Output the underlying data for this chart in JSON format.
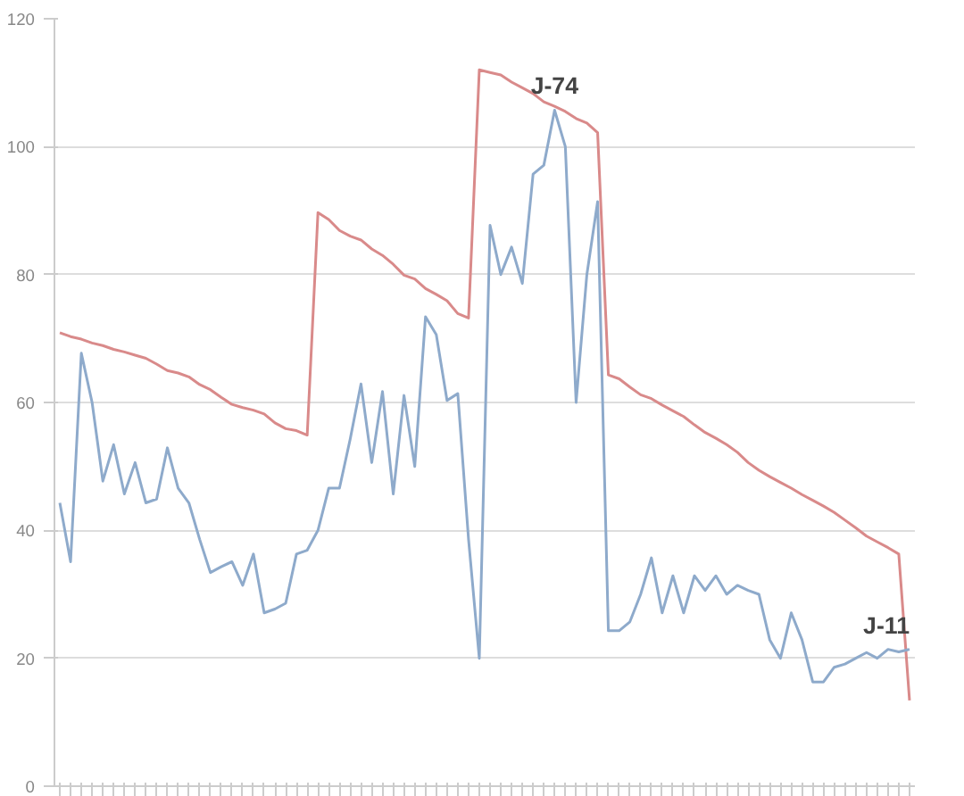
{
  "chart_data": {
    "type": "line",
    "ylim": [
      0,
      120
    ],
    "yticks": [
      0,
      20,
      40,
      60,
      80,
      100,
      120
    ],
    "tick_labels": "y",
    "grid": "y",
    "categories": [
      null,
      null,
      null,
      null,
      null,
      null,
      null,
      null,
      null,
      null,
      null,
      null,
      null,
      null,
      null,
      null,
      null,
      null,
      null,
      null,
      null,
      null,
      null,
      null,
      null,
      null,
      null,
      null,
      null,
      null,
      null,
      null,
      null,
      null,
      null,
      null,
      null,
      null,
      null,
      null,
      null,
      null,
      null,
      null,
      null,
      null,
      null,
      null,
      null,
      null,
      null,
      null,
      null,
      null,
      null,
      null,
      null,
      null,
      null,
      null,
      null,
      null,
      null,
      null,
      null,
      null,
      null,
      null,
      null,
      null,
      null,
      null,
      null,
      null,
      null,
      null,
      null,
      null,
      null,
      null
    ],
    "series": [
      {
        "color": "#d98a8a",
        "values": [
          70.9,
          70.3,
          69.9,
          69.3,
          68.9,
          68.3,
          67.9,
          67.4,
          66.9,
          66.0,
          65.0,
          64.6,
          64.0,
          62.8,
          62.0,
          60.8,
          59.7,
          59.2,
          58.8,
          58.2,
          56.8,
          55.9,
          55.6,
          54.9,
          89.7,
          88.6,
          86.9,
          86.0,
          85.4,
          84.0,
          83.0,
          81.6,
          79.9,
          79.3,
          77.8,
          76.9,
          75.9,
          73.9,
          73.2,
          112.0,
          111.6,
          111.2,
          110.1,
          109.2,
          108.3,
          107.0,
          106.3,
          105.5,
          104.4,
          103.7,
          102.2,
          64.3,
          63.7,
          62.4,
          61.2,
          60.6,
          59.6,
          58.7,
          57.8,
          56.5,
          55.3,
          54.4,
          53.4,
          52.2,
          50.6,
          49.4,
          48.4,
          47.5,
          46.6,
          45.6,
          44.7,
          43.8,
          42.8,
          41.6,
          40.4,
          39.1,
          38.2,
          37.3,
          36.3,
          13.4
        ]
      },
      {
        "color": "#8eaacb",
        "values": [
          44.3,
          35.1,
          67.7,
          60,
          47.7,
          53.4,
          45.7,
          50.6,
          44.3,
          44.9,
          52.9,
          46.6,
          44.3,
          38.6,
          33.4,
          34.3,
          35.1,
          31.4,
          36.3,
          27.1,
          27.7,
          28.6,
          36.3,
          36.9,
          40,
          46.6,
          46.6,
          54.3,
          62.9,
          50.6,
          61.7,
          45.7,
          61.1,
          50,
          73.4,
          70.6,
          60.3,
          61.4,
          38.6,
          20,
          87.7,
          80,
          84.3,
          78.6,
          95.7,
          97.1,
          105.7,
          100,
          60,
          80,
          91.4,
          24.3,
          24.3,
          25.7,
          30,
          35.7,
          27.1,
          32.9,
          27.1,
          32.9,
          30.6,
          32.9,
          30,
          31.4,
          30.6,
          30,
          22.9,
          20,
          27.1,
          22.9,
          16.3,
          16.3,
          18.6,
          19.1,
          20,
          20.9,
          20,
          21.4,
          21,
          21.4
        ]
      }
    ],
    "annotations": [
      {
        "text": "J-74",
        "y": 105.7
      },
      {
        "text": "J-11",
        "y": 21.4
      }
    ]
  }
}
